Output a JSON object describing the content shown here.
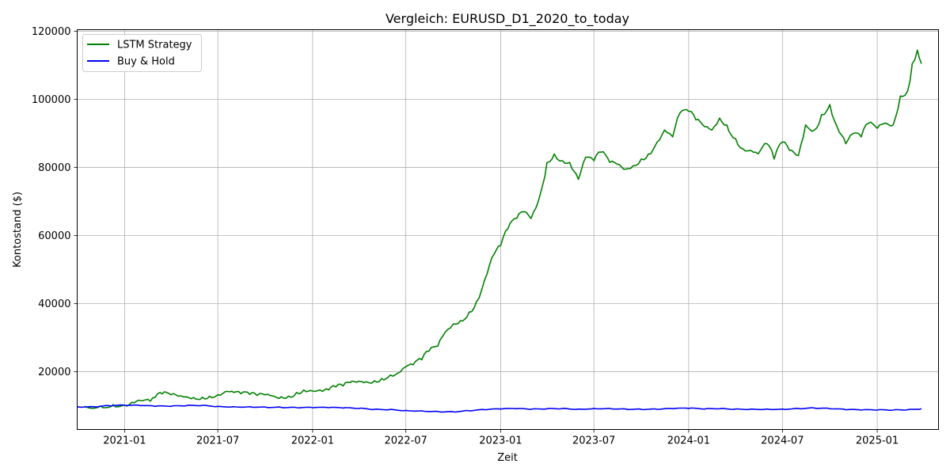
{
  "chart_data": {
    "type": "line",
    "title": "Vergleich: EURUSD_D1_2020_to_today",
    "xlabel": "Zeit",
    "ylabel": "Kontostand ($)",
    "x_range": [
      "2020-10-01",
      "2025-04-30"
    ],
    "y_range": [
      3000,
      120500
    ],
    "x_ticks": [
      {
        "date": "2021-01-01",
        "label": "2021-01"
      },
      {
        "date": "2021-07-01",
        "label": "2021-07"
      },
      {
        "date": "2022-01-01",
        "label": "2022-01"
      },
      {
        "date": "2022-07-01",
        "label": "2022-07"
      },
      {
        "date": "2023-01-01",
        "label": "2023-01"
      },
      {
        "date": "2023-07-01",
        "label": "2023-07"
      },
      {
        "date": "2024-01-01",
        "label": "2024-01"
      },
      {
        "date": "2024-07-01",
        "label": "2024-07"
      },
      {
        "date": "2025-01-01",
        "label": "2025-01"
      }
    ],
    "y_ticks": [
      {
        "value": 20000,
        "label": "20000"
      },
      {
        "value": 40000,
        "label": "40000"
      },
      {
        "value": 60000,
        "label": "60000"
      },
      {
        "value": 80000,
        "label": "80000"
      },
      {
        "value": 100000,
        "label": "100000"
      },
      {
        "value": 120000,
        "label": "120000"
      }
    ],
    "grid": true,
    "legend_position": "top-left",
    "series": [
      {
        "name": "LSTM Strategy",
        "color": "#008000",
        "points": [
          [
            "2020-10-15",
            9800
          ],
          [
            "2020-11-15",
            9900
          ],
          [
            "2020-12-10",
            10300
          ],
          [
            "2021-01-01",
            10200
          ],
          [
            "2021-01-15",
            11000
          ],
          [
            "2021-02-01",
            11500
          ],
          [
            "2021-02-20",
            11300
          ],
          [
            "2021-03-01",
            12400
          ],
          [
            "2021-03-15",
            13500
          ],
          [
            "2021-04-01",
            13200
          ],
          [
            "2021-04-15",
            12800
          ],
          [
            "2021-05-01",
            12600
          ],
          [
            "2021-05-15",
            12400
          ],
          [
            "2021-06-01",
            12500
          ],
          [
            "2021-06-15",
            12800
          ],
          [
            "2021-07-01",
            13200
          ],
          [
            "2021-07-20",
            14200
          ],
          [
            "2021-08-01",
            13900
          ],
          [
            "2021-08-15",
            13500
          ],
          [
            "2021-09-01",
            13300
          ],
          [
            "2021-09-15",
            13000
          ],
          [
            "2021-10-01",
            13200
          ],
          [
            "2021-10-15",
            12900
          ],
          [
            "2021-11-01",
            12600
          ],
          [
            "2021-11-15",
            12800
          ],
          [
            "2021-12-01",
            13900
          ],
          [
            "2021-12-15",
            14600
          ],
          [
            "2022-01-01",
            14300
          ],
          [
            "2022-01-20",
            14200
          ],
          [
            "2022-02-01",
            14600
          ],
          [
            "2022-02-15",
            15500
          ],
          [
            "2022-03-01",
            15800
          ],
          [
            "2022-03-15",
            16800
          ],
          [
            "2022-04-01",
            17200
          ],
          [
            "2022-04-15",
            17000
          ],
          [
            "2022-05-01",
            17300
          ],
          [
            "2022-05-15",
            18000
          ],
          [
            "2022-06-01",
            19000
          ],
          [
            "2022-06-15",
            19500
          ],
          [
            "2022-07-01",
            21500
          ],
          [
            "2022-07-15",
            22000
          ],
          [
            "2022-08-01",
            23500
          ],
          [
            "2022-08-15",
            26000
          ],
          [
            "2022-09-01",
            27500
          ],
          [
            "2022-09-15",
            31500
          ],
          [
            "2022-10-01",
            34000
          ],
          [
            "2022-10-15",
            35000
          ],
          [
            "2022-11-01",
            37500
          ],
          [
            "2022-11-15",
            40500
          ],
          [
            "2022-12-01",
            47000
          ],
          [
            "2022-12-15",
            53500
          ],
          [
            "2023-01-01",
            57000
          ],
          [
            "2023-01-15",
            62000
          ],
          [
            "2023-02-01",
            65000
          ],
          [
            "2023-02-15",
            67000
          ],
          [
            "2023-03-01",
            65000
          ],
          [
            "2023-03-15",
            70000
          ],
          [
            "2023-04-01",
            81500
          ],
          [
            "2023-04-15",
            84000
          ],
          [
            "2023-05-01",
            82000
          ],
          [
            "2023-05-15",
            81500
          ],
          [
            "2023-06-01",
            76500
          ],
          [
            "2023-06-15",
            83000
          ],
          [
            "2023-07-01",
            82000
          ],
          [
            "2023-07-15",
            84500
          ],
          [
            "2023-08-01",
            81500
          ],
          [
            "2023-08-15",
            81000
          ],
          [
            "2023-09-01",
            79500
          ],
          [
            "2023-09-15",
            80500
          ],
          [
            "2023-10-01",
            82500
          ],
          [
            "2023-10-15",
            84000
          ],
          [
            "2023-11-01",
            87500
          ],
          [
            "2023-11-15",
            91000
          ],
          [
            "2023-12-01",
            89000
          ],
          [
            "2023-12-15",
            96000
          ],
          [
            "2024-01-01",
            96500
          ],
          [
            "2024-01-15",
            94000
          ],
          [
            "2024-02-01",
            92000
          ],
          [
            "2024-02-15",
            91000
          ],
          [
            "2024-03-01",
            94500
          ],
          [
            "2024-03-15",
            92500
          ],
          [
            "2024-04-01",
            88500
          ],
          [
            "2024-04-15",
            85500
          ],
          [
            "2024-05-01",
            85000
          ],
          [
            "2024-05-15",
            84000
          ],
          [
            "2024-06-01",
            87000
          ],
          [
            "2024-06-15",
            82500
          ],
          [
            "2024-07-01",
            87500
          ],
          [
            "2024-07-15",
            85000
          ],
          [
            "2024-08-01",
            83500
          ],
          [
            "2024-08-15",
            92500
          ],
          [
            "2024-09-01",
            91000
          ],
          [
            "2024-09-15",
            95500
          ],
          [
            "2024-10-01",
            98500
          ],
          [
            "2024-10-15",
            92000
          ],
          [
            "2024-11-01",
            87000
          ],
          [
            "2024-11-15",
            90000
          ],
          [
            "2024-12-01",
            89000
          ],
          [
            "2024-12-15",
            93000
          ],
          [
            "2025-01-01",
            91500
          ],
          [
            "2025-01-15",
            93000
          ],
          [
            "2025-02-01",
            92500
          ],
          [
            "2025-02-15",
            101000
          ],
          [
            "2025-03-01",
            102500
          ],
          [
            "2025-03-10",
            110500
          ],
          [
            "2025-03-20",
            114500
          ],
          [
            "2025-03-28",
            110500
          ]
        ]
      },
      {
        "name": "Buy & Hold",
        "color": "#0000ff",
        "points": [
          [
            "2020-10-01",
            9700
          ],
          [
            "2020-11-01",
            9700
          ],
          [
            "2020-12-01",
            10000
          ],
          [
            "2021-01-01",
            10100
          ],
          [
            "2021-02-01",
            10000
          ],
          [
            "2021-03-01",
            9800
          ],
          [
            "2021-04-01",
            9800
          ],
          [
            "2021-05-01",
            10000
          ],
          [
            "2021-06-01",
            10100
          ],
          [
            "2021-07-01",
            9800
          ],
          [
            "2021-08-01",
            9700
          ],
          [
            "2021-09-01",
            9700
          ],
          [
            "2021-10-01",
            9600
          ],
          [
            "2021-11-01",
            9500
          ],
          [
            "2021-12-01",
            9400
          ],
          [
            "2022-01-01",
            9400
          ],
          [
            "2022-02-01",
            9400
          ],
          [
            "2022-03-01",
            9300
          ],
          [
            "2022-04-01",
            9200
          ],
          [
            "2022-05-01",
            8900
          ],
          [
            "2022-06-01",
            8900
          ],
          [
            "2022-07-01",
            8600
          ],
          [
            "2022-08-01",
            8500
          ],
          [
            "2022-09-01",
            8300
          ],
          [
            "2022-10-01",
            8200
          ],
          [
            "2022-11-01",
            8500
          ],
          [
            "2022-12-01",
            8800
          ],
          [
            "2023-01-01",
            9000
          ],
          [
            "2023-02-01",
            9100
          ],
          [
            "2023-03-01",
            8900
          ],
          [
            "2023-04-01",
            9100
          ],
          [
            "2023-05-01",
            9200
          ],
          [
            "2023-06-01",
            9000
          ],
          [
            "2023-07-01",
            9200
          ],
          [
            "2023-08-01",
            9200
          ],
          [
            "2023-09-01",
            9000
          ],
          [
            "2023-10-01",
            8900
          ],
          [
            "2023-11-01",
            8900
          ],
          [
            "2023-12-01",
            9100
          ],
          [
            "2024-01-01",
            9200
          ],
          [
            "2024-02-01",
            9000
          ],
          [
            "2024-03-01",
            9100
          ],
          [
            "2024-04-01",
            9000
          ],
          [
            "2024-05-01",
            9000
          ],
          [
            "2024-06-01",
            9000
          ],
          [
            "2024-07-01",
            9000
          ],
          [
            "2024-08-01",
            9200
          ],
          [
            "2024-09-01",
            9300
          ],
          [
            "2024-10-01",
            9100
          ],
          [
            "2024-11-01",
            8800
          ],
          [
            "2024-12-01",
            8700
          ],
          [
            "2025-01-01",
            8700
          ],
          [
            "2025-02-01",
            8700
          ],
          [
            "2025-03-01",
            8800
          ],
          [
            "2025-03-28",
            9100
          ]
        ]
      }
    ]
  }
}
